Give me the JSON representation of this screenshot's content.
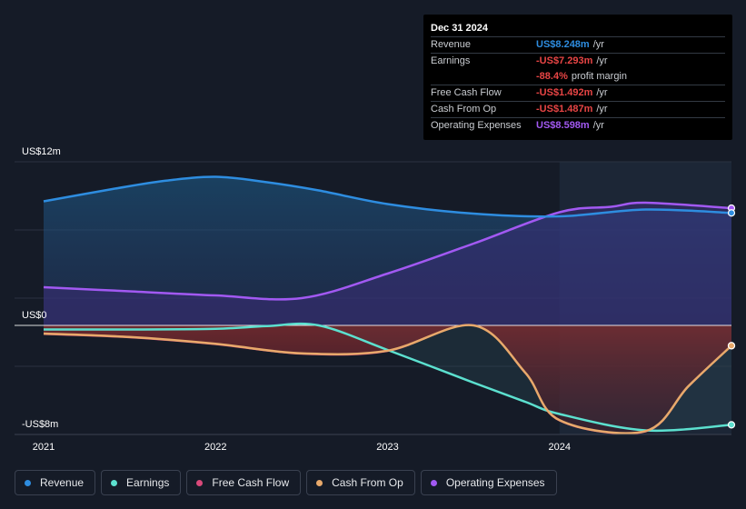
{
  "tooltip": {
    "date": "Dec 31 2024",
    "rows": [
      {
        "label": "Revenue",
        "value": "US$8.248m",
        "unit": "/yr",
        "color": "#2e8de0"
      },
      {
        "label": "Earnings",
        "value": "-US$7.293m",
        "unit": "/yr",
        "color": "#e84545"
      },
      {
        "label": "",
        "value": "-88.4%",
        "unit": "profit margin",
        "color": "#e84545"
      },
      {
        "label": "Free Cash Flow",
        "value": "-US$1.492m",
        "unit": "/yr",
        "color": "#e84545"
      },
      {
        "label": "Cash From Op",
        "value": "-US$1.487m",
        "unit": "/yr",
        "color": "#e84545"
      },
      {
        "label": "Operating Expenses",
        "value": "US$8.598m",
        "unit": "/yr",
        "color": "#a259f2"
      }
    ]
  },
  "legend": [
    {
      "label": "Revenue",
      "color": "#2e8de0"
    },
    {
      "label": "Earnings",
      "color": "#5ce0cf"
    },
    {
      "label": "Free Cash Flow",
      "color": "#d9497a"
    },
    {
      "label": "Cash From Op",
      "color": "#e8a96b"
    },
    {
      "label": "Operating Expenses",
      "color": "#a259f2"
    }
  ],
  "chart_data": {
    "type": "area",
    "y_tick_labels": [
      "US$12m",
      "US$0",
      "-US$8m"
    ],
    "x_tick_labels": [
      "2021",
      "2022",
      "2023",
      "2024"
    ],
    "ylim": [
      -8,
      12
    ],
    "xlim": [
      2021.0,
      2025.0
    ],
    "grid": true,
    "legend_position": "bottom",
    "highlight_start": 2024.0,
    "series": [
      {
        "name": "Revenue",
        "color": "#2e8de0",
        "x": [
          2021.0,
          2021.4,
          2021.7,
          2022.0,
          2022.3,
          2022.6,
          2023.0,
          2023.5,
          2024.0,
          2024.5,
          2025.0
        ],
        "y": [
          9.1,
          10.0,
          10.6,
          10.9,
          10.5,
          9.9,
          8.9,
          8.2,
          8.0,
          8.5,
          8.25
        ]
      },
      {
        "name": "Earnings",
        "color": "#5ce0cf",
        "x": [
          2021.0,
          2021.5,
          2022.0,
          2022.3,
          2022.6,
          2023.0,
          2023.5,
          2023.8,
          2024.0,
          2024.5,
          2025.0
        ],
        "y": [
          -0.3,
          -0.3,
          -0.25,
          -0.05,
          0.0,
          -1.8,
          -4.2,
          -5.6,
          -6.5,
          -7.7,
          -7.29
        ]
      },
      {
        "name": "Free Cash Flow",
        "color": "#d9497a",
        "x": [
          2021.0,
          2021.5,
          2022.0,
          2022.5,
          2023.0,
          2023.5,
          2023.8,
          2024.0,
          2024.5,
          2024.75,
          2025.0
        ],
        "y": [
          -0.65,
          -0.9,
          -1.4,
          -2.1,
          -1.9,
          0.0,
          -3.5,
          -7.0,
          -7.8,
          -4.5,
          -1.49
        ]
      },
      {
        "name": "Cash From Op",
        "color": "#e8a96b",
        "x": [
          2021.0,
          2021.5,
          2022.0,
          2022.5,
          2023.0,
          2023.5,
          2023.8,
          2024.0,
          2024.5,
          2024.75,
          2025.0
        ],
        "y": [
          -0.6,
          -0.85,
          -1.35,
          -2.05,
          -1.85,
          0.0,
          -3.45,
          -6.95,
          -7.75,
          -4.45,
          -1.487
        ]
      },
      {
        "name": "Operating Expenses",
        "color": "#a259f2",
        "x": [
          2021.0,
          2021.5,
          2022.0,
          2022.5,
          2023.0,
          2023.5,
          2024.0,
          2024.3,
          2024.5,
          2025.0
        ],
        "y": [
          2.8,
          2.5,
          2.2,
          2.0,
          3.8,
          6.0,
          8.3,
          8.7,
          9.0,
          8.6
        ]
      }
    ]
  }
}
